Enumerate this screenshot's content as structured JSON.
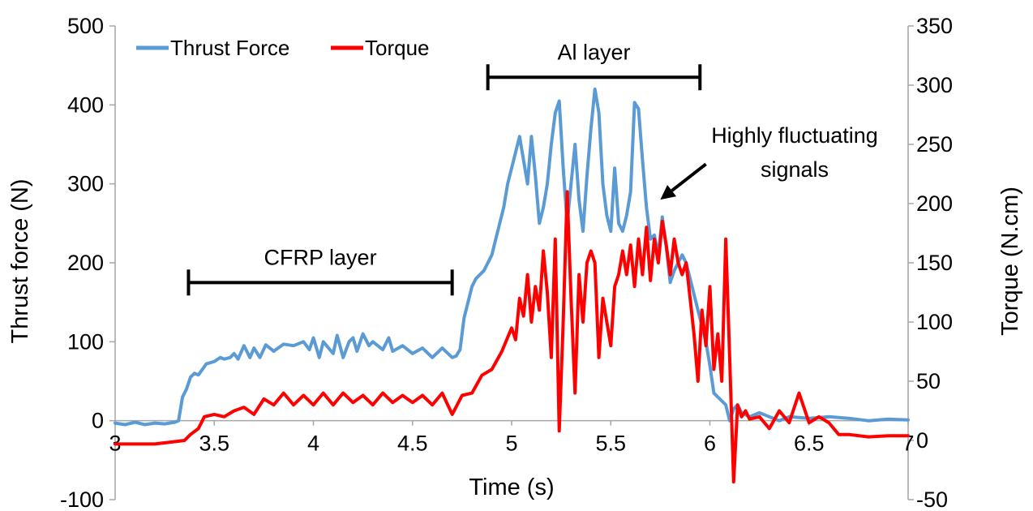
{
  "chart_data": {
    "type": "line",
    "xlabel": "Time (s)",
    "ylabel": "Thrust force (N)",
    "y2label": "Torque (N.cm)",
    "xlim": [
      3,
      7
    ],
    "ylim": [
      -100,
      500
    ],
    "y2lim": [
      -50,
      350
    ],
    "xticks": [
      "3",
      "3.5",
      "4",
      "4.5",
      "5",
      "5.5",
      "6",
      "6.5",
      "7"
    ],
    "yticks": [
      "-100",
      "0",
      "100",
      "200",
      "300",
      "400",
      "500"
    ],
    "y2ticks": [
      "-50",
      "0",
      "50",
      "100",
      "150",
      "200",
      "250",
      "300",
      "350"
    ],
    "grid": false,
    "legend_position": "top-left",
    "colors": {
      "thrust": "#5b9bd5",
      "torque": "#ff0000",
      "annot": "#000000"
    },
    "series": [
      {
        "name": "Thrust Force",
        "axis": "left",
        "points": [
          [
            3.0,
            -3
          ],
          [
            3.05,
            -5
          ],
          [
            3.1,
            -2
          ],
          [
            3.15,
            -5
          ],
          [
            3.2,
            -3
          ],
          [
            3.25,
            -4
          ],
          [
            3.3,
            -2
          ],
          [
            3.32,
            0
          ],
          [
            3.34,
            30
          ],
          [
            3.36,
            40
          ],
          [
            3.38,
            55
          ],
          [
            3.4,
            60
          ],
          [
            3.42,
            58
          ],
          [
            3.44,
            65
          ],
          [
            3.46,
            72
          ],
          [
            3.5,
            75
          ],
          [
            3.53,
            80
          ],
          [
            3.55,
            78
          ],
          [
            3.58,
            80
          ],
          [
            3.6,
            85
          ],
          [
            3.62,
            78
          ],
          [
            3.65,
            95
          ],
          [
            3.68,
            80
          ],
          [
            3.7,
            92
          ],
          [
            3.73,
            80
          ],
          [
            3.76,
            96
          ],
          [
            3.8,
            88
          ],
          [
            3.85,
            97
          ],
          [
            3.9,
            95
          ],
          [
            3.95,
            100
          ],
          [
            3.98,
            90
          ],
          [
            4.0,
            105
          ],
          [
            4.03,
            80
          ],
          [
            4.05,
            100
          ],
          [
            4.1,
            85
          ],
          [
            4.12,
            108
          ],
          [
            4.15,
            80
          ],
          [
            4.18,
            100
          ],
          [
            4.2,
            105
          ],
          [
            4.22,
            88
          ],
          [
            4.25,
            110
          ],
          [
            4.28,
            95
          ],
          [
            4.3,
            100
          ],
          [
            4.35,
            90
          ],
          [
            4.38,
            105
          ],
          [
            4.4,
            88
          ],
          [
            4.45,
            95
          ],
          [
            4.5,
            85
          ],
          [
            4.55,
            92
          ],
          [
            4.6,
            80
          ],
          [
            4.65,
            92
          ],
          [
            4.7,
            80
          ],
          [
            4.72,
            82
          ],
          [
            4.74,
            90
          ],
          [
            4.76,
            130
          ],
          [
            4.78,
            150
          ],
          [
            4.8,
            170
          ],
          [
            4.82,
            180
          ],
          [
            4.84,
            185
          ],
          [
            4.86,
            190
          ],
          [
            4.88,
            200
          ],
          [
            4.9,
            210
          ],
          [
            4.92,
            230
          ],
          [
            4.94,
            250
          ],
          [
            4.96,
            270
          ],
          [
            4.98,
            300
          ],
          [
            5.0,
            320
          ],
          [
            5.02,
            340
          ],
          [
            5.04,
            360
          ],
          [
            5.06,
            330
          ],
          [
            5.08,
            300
          ],
          [
            5.1,
            360
          ],
          [
            5.12,
            310
          ],
          [
            5.14,
            250
          ],
          [
            5.16,
            270
          ],
          [
            5.18,
            300
          ],
          [
            5.2,
            350
          ],
          [
            5.22,
            390
          ],
          [
            5.24,
            405
          ],
          [
            5.26,
            320
          ],
          [
            5.28,
            250
          ],
          [
            5.3,
            300
          ],
          [
            5.32,
            350
          ],
          [
            5.34,
            280
          ],
          [
            5.36,
            240
          ],
          [
            5.38,
            310
          ],
          [
            5.4,
            370
          ],
          [
            5.42,
            420
          ],
          [
            5.44,
            390
          ],
          [
            5.46,
            300
          ],
          [
            5.48,
            260
          ],
          [
            5.5,
            240
          ],
          [
            5.52,
            320
          ],
          [
            5.54,
            250
          ],
          [
            5.56,
            240
          ],
          [
            5.58,
            260
          ],
          [
            5.6,
            290
          ],
          [
            5.62,
            403
          ],
          [
            5.64,
            395
          ],
          [
            5.66,
            330
          ],
          [
            5.68,
            270
          ],
          [
            5.7,
            230
          ],
          [
            5.72,
            235
          ],
          [
            5.74,
            210
          ],
          [
            5.76,
            258
          ],
          [
            5.78,
            220
          ],
          [
            5.8,
            175
          ],
          [
            5.82,
            190
          ],
          [
            5.84,
            200
          ],
          [
            5.86,
            210
          ],
          [
            5.88,
            200
          ],
          [
            5.9,
            180
          ],
          [
            5.92,
            160
          ],
          [
            5.94,
            140
          ],
          [
            5.96,
            120
          ],
          [
            5.98,
            100
          ],
          [
            6.0,
            70
          ],
          [
            6.02,
            35
          ],
          [
            6.04,
            30
          ],
          [
            6.06,
            25
          ],
          [
            6.08,
            20
          ],
          [
            6.1,
            0
          ],
          [
            6.12,
            15
          ],
          [
            6.14,
            20
          ],
          [
            6.16,
            10
          ],
          [
            6.2,
            5
          ],
          [
            6.25,
            10
          ],
          [
            6.3,
            5
          ],
          [
            6.35,
            0
          ],
          [
            6.4,
            5
          ],
          [
            6.5,
            3
          ],
          [
            6.6,
            5
          ],
          [
            6.7,
            3
          ],
          [
            6.8,
            0
          ],
          [
            6.9,
            2
          ],
          [
            7.0,
            1
          ]
        ]
      },
      {
        "name": "Torque",
        "axis": "right",
        "points": [
          [
            3.0,
            -3
          ],
          [
            3.1,
            -3
          ],
          [
            3.2,
            -3
          ],
          [
            3.3,
            -1
          ],
          [
            3.35,
            0
          ],
          [
            3.38,
            5
          ],
          [
            3.42,
            10
          ],
          [
            3.45,
            20
          ],
          [
            3.5,
            22
          ],
          [
            3.55,
            20
          ],
          [
            3.6,
            25
          ],
          [
            3.65,
            28
          ],
          [
            3.7,
            22
          ],
          [
            3.75,
            35
          ],
          [
            3.8,
            30
          ],
          [
            3.85,
            40
          ],
          [
            3.9,
            30
          ],
          [
            3.95,
            38
          ],
          [
            4.0,
            30
          ],
          [
            4.05,
            40
          ],
          [
            4.1,
            30
          ],
          [
            4.15,
            40
          ],
          [
            4.2,
            32
          ],
          [
            4.25,
            38
          ],
          [
            4.3,
            30
          ],
          [
            4.35,
            40
          ],
          [
            4.4,
            32
          ],
          [
            4.45,
            38
          ],
          [
            4.5,
            32
          ],
          [
            4.55,
            38
          ],
          [
            4.6,
            30
          ],
          [
            4.65,
            40
          ],
          [
            4.7,
            22
          ],
          [
            4.75,
            38
          ],
          [
            4.8,
            40
          ],
          [
            4.85,
            55
          ],
          [
            4.9,
            60
          ],
          [
            4.95,
            75
          ],
          [
            5.0,
            95
          ],
          [
            5.02,
            85
          ],
          [
            5.04,
            120
          ],
          [
            5.06,
            105
          ],
          [
            5.08,
            140
          ],
          [
            5.1,
            100
          ],
          [
            5.12,
            130
          ],
          [
            5.14,
            110
          ],
          [
            5.16,
            160
          ],
          [
            5.18,
            125
          ],
          [
            5.2,
            70
          ],
          [
            5.22,
            170
          ],
          [
            5.24,
            8
          ],
          [
            5.26,
            100
          ],
          [
            5.28,
            210
          ],
          [
            5.3,
            120
          ],
          [
            5.32,
            40
          ],
          [
            5.34,
            140
          ],
          [
            5.36,
            100
          ],
          [
            5.38,
            150
          ],
          [
            5.4,
            160
          ],
          [
            5.42,
            150
          ],
          [
            5.44,
            70
          ],
          [
            5.46,
            120
          ],
          [
            5.48,
            100
          ],
          [
            5.5,
            80
          ],
          [
            5.52,
            130
          ],
          [
            5.54,
            140
          ],
          [
            5.56,
            160
          ],
          [
            5.58,
            140
          ],
          [
            5.6,
            165
          ],
          [
            5.62,
            130
          ],
          [
            5.64,
            170
          ],
          [
            5.66,
            140
          ],
          [
            5.68,
            180
          ],
          [
            5.7,
            135
          ],
          [
            5.72,
            170
          ],
          [
            5.74,
            150
          ],
          [
            5.76,
            185
          ],
          [
            5.78,
            165
          ],
          [
            5.8,
            140
          ],
          [
            5.82,
            170
          ],
          [
            5.84,
            150
          ],
          [
            5.86,
            140
          ],
          [
            5.88,
            150
          ],
          [
            5.9,
            120
          ],
          [
            5.92,
            90
          ],
          [
            5.94,
            50
          ],
          [
            5.96,
            110
          ],
          [
            5.98,
            80
          ],
          [
            6.0,
            130
          ],
          [
            6.02,
            60
          ],
          [
            6.04,
            90
          ],
          [
            6.06,
            50
          ],
          [
            6.08,
            170
          ],
          [
            6.1,
            70
          ],
          [
            6.12,
            -35
          ],
          [
            6.14,
            30
          ],
          [
            6.16,
            20
          ],
          [
            6.18,
            25
          ],
          [
            6.2,
            18
          ],
          [
            6.25,
            20
          ],
          [
            6.3,
            10
          ],
          [
            6.35,
            25
          ],
          [
            6.4,
            15
          ],
          [
            6.45,
            40
          ],
          [
            6.5,
            15
          ],
          [
            6.55,
            20
          ],
          [
            6.6,
            15
          ],
          [
            6.65,
            5
          ],
          [
            6.7,
            5
          ],
          [
            6.8,
            3
          ],
          [
            6.9,
            4
          ],
          [
            7.0,
            4
          ]
        ]
      }
    ],
    "annotations": [
      {
        "name": "cfrp",
        "label": "CFRP layer",
        "type": "bracket",
        "x0": 3.37,
        "x1": 4.7,
        "y": 175
      },
      {
        "name": "al",
        "label": "Al layer",
        "type": "bracket",
        "x0": 4.88,
        "x1": 5.95,
        "y": 435
      },
      {
        "name": "fluct",
        "label_lines": [
          "Highly fluctuating",
          "signals"
        ],
        "type": "arrow",
        "x": 5.75,
        "y": 280,
        "x0": 5.98,
        "y0": 325
      }
    ]
  }
}
